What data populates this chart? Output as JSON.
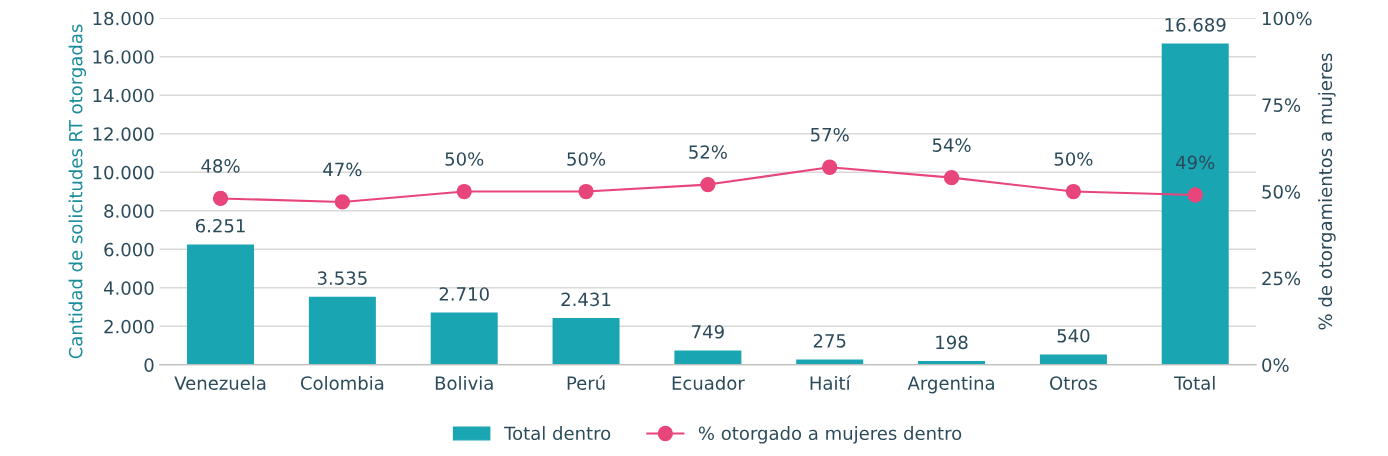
{
  "chart_data": {
    "type": "bar",
    "ylabel": "Cantidad de solicitudes RT otorgadas",
    "y2label": "% de otorgamientos a mujeres",
    "categories": [
      "Venezuela",
      "Colombia",
      "Bolivia",
      "Perú",
      "Ecuador",
      "Haití",
      "Argentina",
      "Otros",
      "Total"
    ],
    "series": [
      {
        "name": "Total dentro",
        "color": "#1aa5b2",
        "values": [
          6251,
          3535,
          2710,
          2431,
          749,
          275,
          198,
          540,
          16689
        ],
        "value_labels": [
          "6.251",
          "3.535",
          "2.710",
          "2.431",
          "749",
          "275",
          "198",
          "540",
          "16.689"
        ]
      },
      {
        "name": "% otorgado a mujeres dentro",
        "type": "line",
        "axis": "y2",
        "color": "#e8457a",
        "marker": "circle",
        "values": [
          48,
          47,
          50,
          50,
          52,
          57,
          54,
          50,
          49
        ],
        "value_labels": [
          "48%",
          "47%",
          "50%",
          "50%",
          "52%",
          "57%",
          "54%",
          "50%",
          "49%"
        ]
      }
    ],
    "ylim": [
      0,
      18000
    ],
    "yticks": [
      {
        "value": 0,
        "label": "0"
      },
      {
        "value": 2000,
        "label": "2.000"
      },
      {
        "value": 4000,
        "label": "4.000"
      },
      {
        "value": 6000,
        "label": "6.000"
      },
      {
        "value": 8000,
        "label": "8.000"
      },
      {
        "value": 10000,
        "label": "10.000"
      },
      {
        "value": 12000,
        "label": "12.000"
      },
      {
        "value": 14000,
        "label": "14.000"
      },
      {
        "value": 16000,
        "label": "16.000"
      },
      {
        "value": 18000,
        "label": "18.000"
      }
    ],
    "y2lim": [
      0,
      100
    ],
    "y2ticks": [
      {
        "value": 0,
        "label": "0%"
      },
      {
        "value": 25,
        "label": "25%"
      },
      {
        "value": 50,
        "label": "50%"
      },
      {
        "value": 75,
        "label": "75%"
      },
      {
        "value": 100,
        "label": "100%"
      }
    ],
    "grid": "y",
    "legend": "bottom"
  }
}
